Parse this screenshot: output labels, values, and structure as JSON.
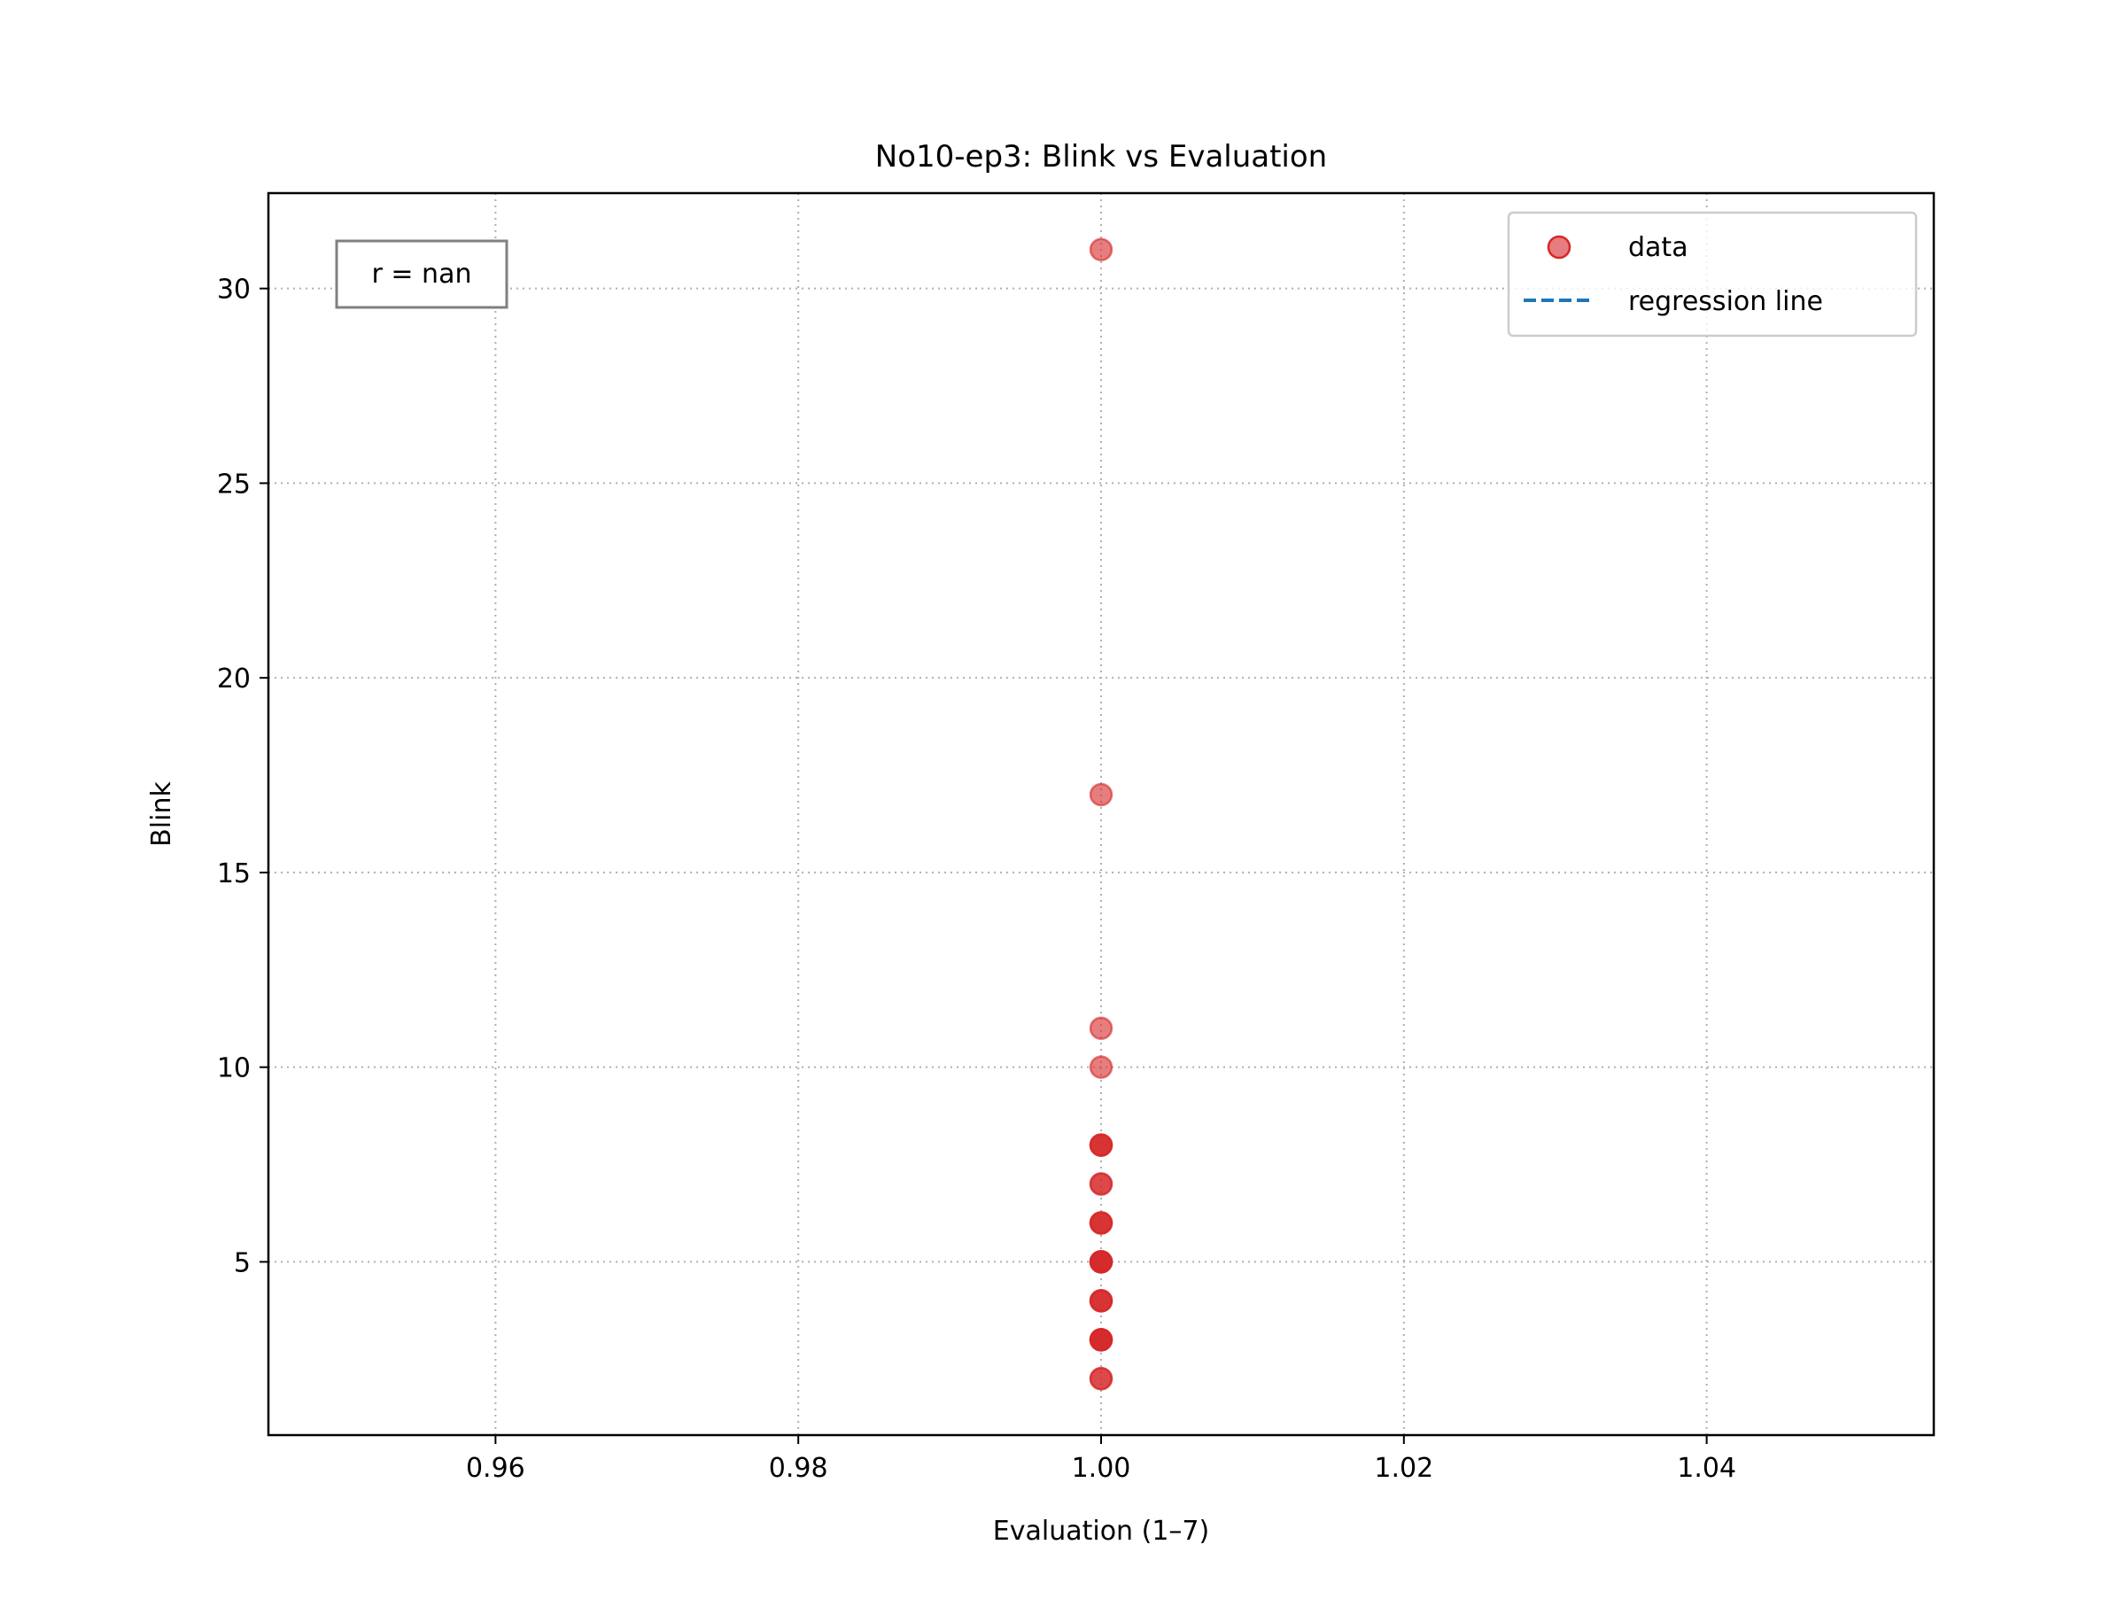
{
  "chart_data": {
    "type": "scatter",
    "title": "No10-ep3: Blink vs Evaluation",
    "xlabel": "Evaluation (1–7)",
    "ylabel": "Blink",
    "xlim": [
      0.945,
      1.055
    ],
    "ylim": [
      0.55,
      32.45
    ],
    "x_ticks": [
      0.96,
      0.98,
      1.0,
      1.02,
      1.04
    ],
    "x_tick_labels": [
      "0.96",
      "0.98",
      "1.00",
      "1.02",
      "1.04"
    ],
    "y_ticks": [
      5,
      10,
      15,
      20,
      25,
      30
    ],
    "y_tick_labels": [
      "5",
      "10",
      "15",
      "20",
      "25",
      "30"
    ],
    "grid": true,
    "legend_position": "top-right",
    "series": [
      {
        "name": "data",
        "marker": "circle",
        "color": "#d62728",
        "x": [
          1.0,
          1.0,
          1.0,
          1.0,
          1.0,
          1.0,
          1.0,
          1.0,
          1.0,
          1.0,
          1.0,
          1.0,
          1.0,
          1.0,
          1.0,
          1.0,
          1.0,
          1.0,
          1.0,
          1.0,
          1.0,
          1.0,
          1.0,
          1.0,
          1.0
        ],
        "y": [
          31,
          17,
          11,
          10,
          8,
          8,
          8,
          7,
          7,
          6,
          6,
          6,
          5,
          5,
          5,
          5,
          4,
          4,
          4,
          3,
          3,
          3,
          3,
          2,
          2
        ]
      },
      {
        "name": "regression line",
        "style": "dashed",
        "color": "#1f77b4",
        "x": [],
        "y": []
      }
    ],
    "annotation": "r = nan"
  }
}
